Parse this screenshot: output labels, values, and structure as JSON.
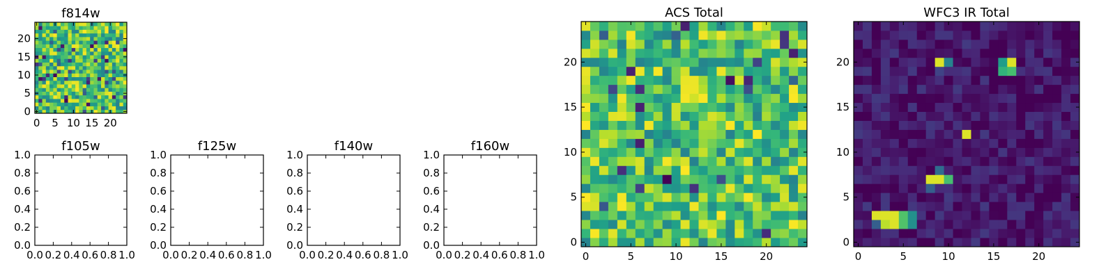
{
  "chart_data": [
    {
      "id": "f814w",
      "type": "heatmap",
      "title": "f814w",
      "colormap": "viridis",
      "grid_size": 25,
      "generator": {
        "seed": 814,
        "base": 0.72,
        "spread": 0.28,
        "lowProb": 0.06,
        "hotspots": []
      },
      "xlim": [
        -0.5,
        24.5
      ],
      "ylim": [
        -0.5,
        24.5
      ],
      "xticks": [
        0,
        5,
        10,
        15,
        20
      ],
      "yticks": [
        0,
        5,
        10,
        15,
        20
      ],
      "xtick_labels": [
        "0",
        "5",
        "10",
        "15",
        "20"
      ],
      "ytick_labels": [
        "0",
        "5",
        "10",
        "15",
        "20"
      ]
    },
    {
      "id": "f105w",
      "type": "empty",
      "title": "f105w",
      "xlim": [
        0,
        1
      ],
      "ylim": [
        0,
        1
      ],
      "xticks": [
        0,
        0.2,
        0.4,
        0.6,
        0.8,
        1.0
      ],
      "yticks": [
        0,
        0.2,
        0.4,
        0.6,
        0.8,
        1.0
      ],
      "xtick_labels": [
        "0.0",
        "0.2",
        "0.4",
        "0.6",
        "0.8",
        "1.0"
      ],
      "ytick_labels": [
        "0.0",
        "0.2",
        "0.4",
        "0.6",
        "0.8",
        "1.0"
      ]
    },
    {
      "id": "f125w",
      "type": "empty",
      "title": "f125w",
      "xlim": [
        0,
        1
      ],
      "ylim": [
        0,
        1
      ],
      "xticks": [
        0,
        0.2,
        0.4,
        0.6,
        0.8,
        1.0
      ],
      "yticks": [
        0,
        0.2,
        0.4,
        0.6,
        0.8,
        1.0
      ],
      "xtick_labels": [
        "0.0",
        "0.2",
        "0.4",
        "0.6",
        "0.8",
        "1.0"
      ],
      "ytick_labels": [
        "0.0",
        "0.2",
        "0.4",
        "0.6",
        "0.8",
        "1.0"
      ]
    },
    {
      "id": "f140w",
      "type": "empty",
      "title": "f140w",
      "xlim": [
        0,
        1
      ],
      "ylim": [
        0,
        1
      ],
      "xticks": [
        0,
        0.2,
        0.4,
        0.6,
        0.8,
        1.0
      ],
      "yticks": [
        0,
        0.2,
        0.4,
        0.6,
        0.8,
        1.0
      ],
      "xtick_labels": [
        "0.0",
        "0.2",
        "0.4",
        "0.6",
        "0.8",
        "1.0"
      ],
      "ytick_labels": [
        "0.0",
        "0.2",
        "0.4",
        "0.6",
        "0.8",
        "1.0"
      ]
    },
    {
      "id": "f160w",
      "type": "empty",
      "title": "f160w",
      "xlim": [
        0,
        1
      ],
      "ylim": [
        0,
        1
      ],
      "xticks": [
        0,
        0.2,
        0.4,
        0.6,
        0.8,
        1.0
      ],
      "yticks": [
        0,
        0.2,
        0.4,
        0.6,
        0.8,
        1.0
      ],
      "xtick_labels": [
        "0.0",
        "0.2",
        "0.4",
        "0.6",
        "0.8",
        "1.0"
      ],
      "ytick_labels": [
        "0.0",
        "0.2",
        "0.4",
        "0.6",
        "0.8",
        "1.0"
      ]
    },
    {
      "id": "acs-total",
      "type": "heatmap",
      "title": "ACS Total",
      "colormap": "viridis",
      "grid_size": 25,
      "generator": {
        "seed": 2024,
        "base": 0.72,
        "spread": 0.28,
        "lowProb": 0.05,
        "hotspots": []
      },
      "xlim": [
        -0.5,
        24.5
      ],
      "ylim": [
        -0.5,
        24.5
      ],
      "xticks": [
        0,
        5,
        10,
        15,
        20
      ],
      "yticks": [
        0,
        5,
        10,
        15,
        20
      ],
      "xtick_labels": [
        "0",
        "5",
        "10",
        "15",
        "20"
      ],
      "ytick_labels": [
        "0",
        "5",
        "10",
        "15",
        "20"
      ]
    },
    {
      "id": "wfc3-ir-total",
      "type": "heatmap",
      "title": "WFC3 IR Total",
      "colormap": "viridis",
      "grid_size": 25,
      "generator": {
        "seed": 31337,
        "base": 0.07,
        "spread": 0.1,
        "lowProb": 0.0,
        "hotspots": [
          [
            2,
            3,
            0.95
          ],
          [
            3,
            3,
            0.95
          ],
          [
            4,
            3,
            0.95
          ],
          [
            3,
            2,
            0.9
          ],
          [
            4,
            2,
            0.95
          ],
          [
            5,
            3,
            0.72
          ],
          [
            5,
            2,
            0.72
          ],
          [
            6,
            3,
            0.5
          ],
          [
            6,
            2,
            0.5
          ],
          [
            2,
            2,
            0.3
          ],
          [
            8,
            7,
            0.95
          ],
          [
            9,
            7,
            0.95
          ],
          [
            10,
            7,
            0.7
          ],
          [
            8,
            6,
            0.3
          ],
          [
            9,
            8,
            0.35
          ],
          [
            12,
            12,
            0.95
          ],
          [
            9,
            20,
            0.95
          ],
          [
            10,
            20,
            0.45
          ],
          [
            9,
            19,
            0.2
          ],
          [
            16,
            20,
            0.55
          ],
          [
            17,
            20,
            0.95
          ],
          [
            16,
            19,
            0.65
          ],
          [
            17,
            19,
            0.7
          ]
        ]
      },
      "xlim": [
        -0.5,
        24.5
      ],
      "ylim": [
        -0.5,
        24.5
      ],
      "xticks": [
        0,
        5,
        10,
        15,
        20
      ],
      "yticks": [
        0,
        5,
        10,
        15,
        20
      ],
      "xtick_labels": [
        "0",
        "5",
        "10",
        "15",
        "20"
      ],
      "ytick_labels": [
        "0",
        "5",
        "10",
        "15",
        "20"
      ]
    }
  ]
}
